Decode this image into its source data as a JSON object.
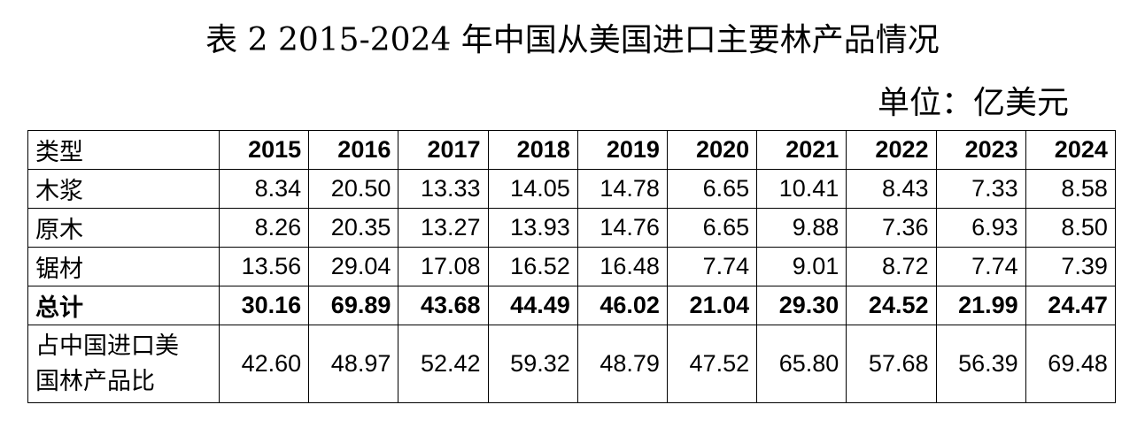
{
  "title": "表 2 2015-2024 年中国从美国进口主要林产品情况",
  "unit": "单位：亿美元",
  "table": {
    "type_header": "类型",
    "years": [
      "2015",
      "2016",
      "2017",
      "2018",
      "2019",
      "2020",
      "2021",
      "2022",
      "2023",
      "2024"
    ],
    "rows": [
      {
        "label": "木浆",
        "values": [
          "8.34",
          "20.50",
          "13.33",
          "14.05",
          "14.78",
          "6.65",
          "10.41",
          "8.43",
          "7.33",
          "8.58"
        ]
      },
      {
        "label": "原木",
        "values": [
          "8.26",
          "20.35",
          "13.27",
          "13.93",
          "14.76",
          "6.65",
          "9.88",
          "7.36",
          "6.93",
          "8.50"
        ]
      },
      {
        "label": "锯材",
        "values": [
          "13.56",
          "29.04",
          "17.08",
          "16.52",
          "16.48",
          "7.74",
          "9.01",
          "8.72",
          "7.74",
          "7.39"
        ]
      }
    ],
    "total": {
      "label": "总计",
      "values": [
        "30.16",
        "69.89",
        "43.68",
        "44.49",
        "46.02",
        "21.04",
        "29.30",
        "24.52",
        "21.99",
        "24.47"
      ]
    },
    "share": {
      "label_line1": "占中国进口美",
      "label_line2": "国林产品比",
      "values": [
        "42.60",
        "48.97",
        "52.42",
        "59.32",
        "48.79",
        "47.52",
        "65.80",
        "57.68",
        "56.39",
        "69.48"
      ]
    }
  }
}
